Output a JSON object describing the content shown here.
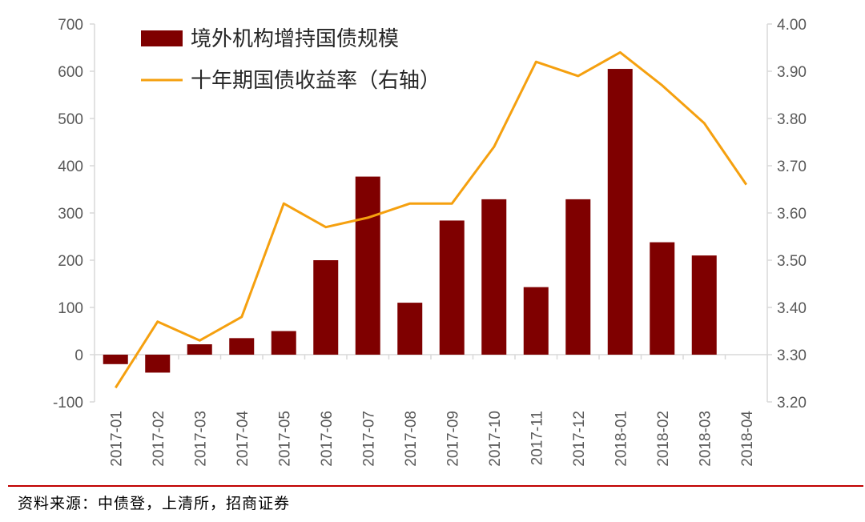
{
  "chart_data": {
    "type": "bar+line",
    "categories": [
      "2017-01",
      "2017-02",
      "2017-03",
      "2017-04",
      "2017-05",
      "2017-06",
      "2017-07",
      "2017-08",
      "2017-09",
      "2017-10",
      "2017-11",
      "2017-12",
      "2018-01",
      "2018-02",
      "2018-03",
      "2018-04"
    ],
    "series": [
      {
        "name": "境外机构增持国债规模",
        "type": "bar",
        "axis": "left",
        "color": "#7f0000",
        "values": [
          -20,
          -38,
          22,
          35,
          50,
          200,
          377,
          110,
          284,
          329,
          143,
          329,
          605,
          238,
          210,
          null
        ]
      },
      {
        "name": "十年期国债收益率（右轴）",
        "type": "line",
        "axis": "right",
        "color": "#f5a00f",
        "values": [
          3.23,
          3.37,
          3.33,
          3.38,
          3.62,
          3.57,
          3.59,
          3.62,
          3.62,
          3.74,
          3.92,
          3.89,
          3.94,
          3.87,
          3.79,
          3.66
        ]
      }
    ],
    "left_axis": {
      "min": -100,
      "max": 700,
      "ticks": [
        "-100",
        "0",
        "100",
        "200",
        "300",
        "400",
        "500",
        "600",
        "700"
      ]
    },
    "right_axis": {
      "min": 3.2,
      "max": 4.0,
      "ticks": [
        "3.20",
        "3.30",
        "3.40",
        "3.50",
        "3.60",
        "3.70",
        "3.80",
        "3.90",
        "4.00"
      ]
    },
    "legend_position": "top-left",
    "grid": false
  },
  "source": "资料来源：中债登，上清所，招商证券",
  "colors": {
    "axis": "#d9d9d9",
    "tick_text": "#595959",
    "divider": "#c00000"
  }
}
